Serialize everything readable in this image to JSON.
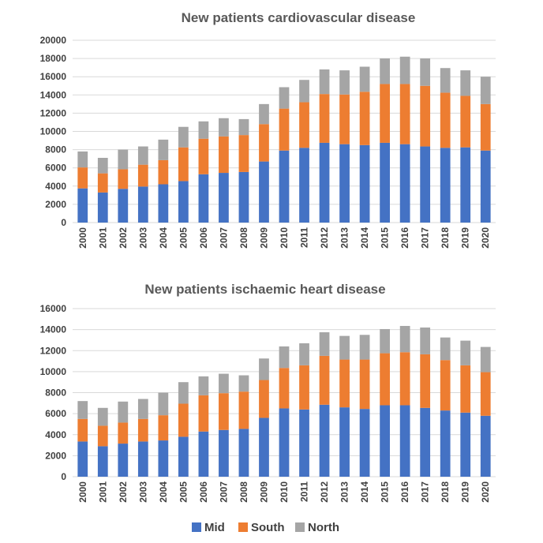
{
  "chart_data": [
    {
      "type": "bar",
      "stacked": true,
      "title": "New patients cardiovascular disease",
      "xlabel": "",
      "ylabel": "",
      "ylim": [
        0,
        20000
      ],
      "yticks": [
        0,
        2000,
        4000,
        6000,
        8000,
        10000,
        12000,
        14000,
        16000,
        18000,
        20000
      ],
      "grid": true,
      "categories": [
        "2000",
        "2001",
        "2002",
        "2003",
        "2004",
        "2005",
        "2006",
        "2007",
        "2008",
        "2009",
        "2010",
        "2011",
        "2012",
        "2013",
        "2014",
        "2015",
        "2016",
        "2017",
        "2018",
        "2019",
        "2020"
      ],
      "series": [
        {
          "name": "Mid",
          "color": "#4472c4",
          "values": [
            3750,
            3300,
            3700,
            3950,
            4200,
            4550,
            5300,
            5450,
            5550,
            6700,
            7900,
            8200,
            8750,
            8600,
            8500,
            8750,
            8600,
            8350,
            8200,
            8250,
            7900
          ]
        },
        {
          "name": "South",
          "color": "#ed7d31",
          "values": [
            2300,
            2100,
            2150,
            2400,
            2650,
            3700,
            3900,
            4000,
            4050,
            4100,
            4600,
            5000,
            5350,
            5450,
            5850,
            6450,
            6600,
            6650,
            6050,
            5650,
            5100
          ]
        },
        {
          "name": "North",
          "color": "#a5a5a5",
          "values": [
            1750,
            1700,
            2150,
            2000,
            2250,
            2250,
            1900,
            2000,
            1750,
            2200,
            2350,
            2450,
            2700,
            2650,
            2750,
            2800,
            3000,
            3000,
            2700,
            2800,
            3000
          ]
        }
      ]
    },
    {
      "type": "bar",
      "stacked": true,
      "title": "New patients ischaemic heart disease",
      "xlabel": "",
      "ylabel": "",
      "ylim": [
        0,
        16000
      ],
      "yticks": [
        0,
        2000,
        4000,
        6000,
        8000,
        10000,
        12000,
        14000,
        16000
      ],
      "grid": true,
      "categories": [
        "2000",
        "2001",
        "2002",
        "2003",
        "2004",
        "2005",
        "2006",
        "2007",
        "2008",
        "2009",
        "2010",
        "2011",
        "2012",
        "2013",
        "2014",
        "2015",
        "2016",
        "2017",
        "2018",
        "2019",
        "2020"
      ],
      "series": [
        {
          "name": "Mid",
          "color": "#4472c4",
          "values": [
            3350,
            2900,
            3150,
            3350,
            3450,
            3800,
            4300,
            4450,
            4550,
            5600,
            6500,
            6400,
            6850,
            6600,
            6450,
            6800,
            6800,
            6550,
            6300,
            6100,
            5800
          ]
        },
        {
          "name": "South",
          "color": "#ed7d31",
          "values": [
            2150,
            1950,
            2000,
            2150,
            2400,
            3150,
            3450,
            3500,
            3550,
            3600,
            3850,
            4200,
            4650,
            4550,
            4700,
            4950,
            5050,
            5100,
            4800,
            4500,
            4150
          ]
        },
        {
          "name": "North",
          "color": "#a5a5a5",
          "values": [
            1700,
            1700,
            2000,
            1900,
            2150,
            2050,
            1800,
            1850,
            1550,
            2050,
            2050,
            2100,
            2250,
            2250,
            2350,
            2300,
            2500,
            2550,
            2150,
            2350,
            2400
          ]
        }
      ]
    }
  ],
  "legend": {
    "position": "bottom-center",
    "entries": [
      {
        "label": "Mid",
        "color": "#4472c4"
      },
      {
        "label": "South",
        "color": "#ed7d31"
      },
      {
        "label": "North",
        "color": "#a5a5a5"
      }
    ]
  }
}
